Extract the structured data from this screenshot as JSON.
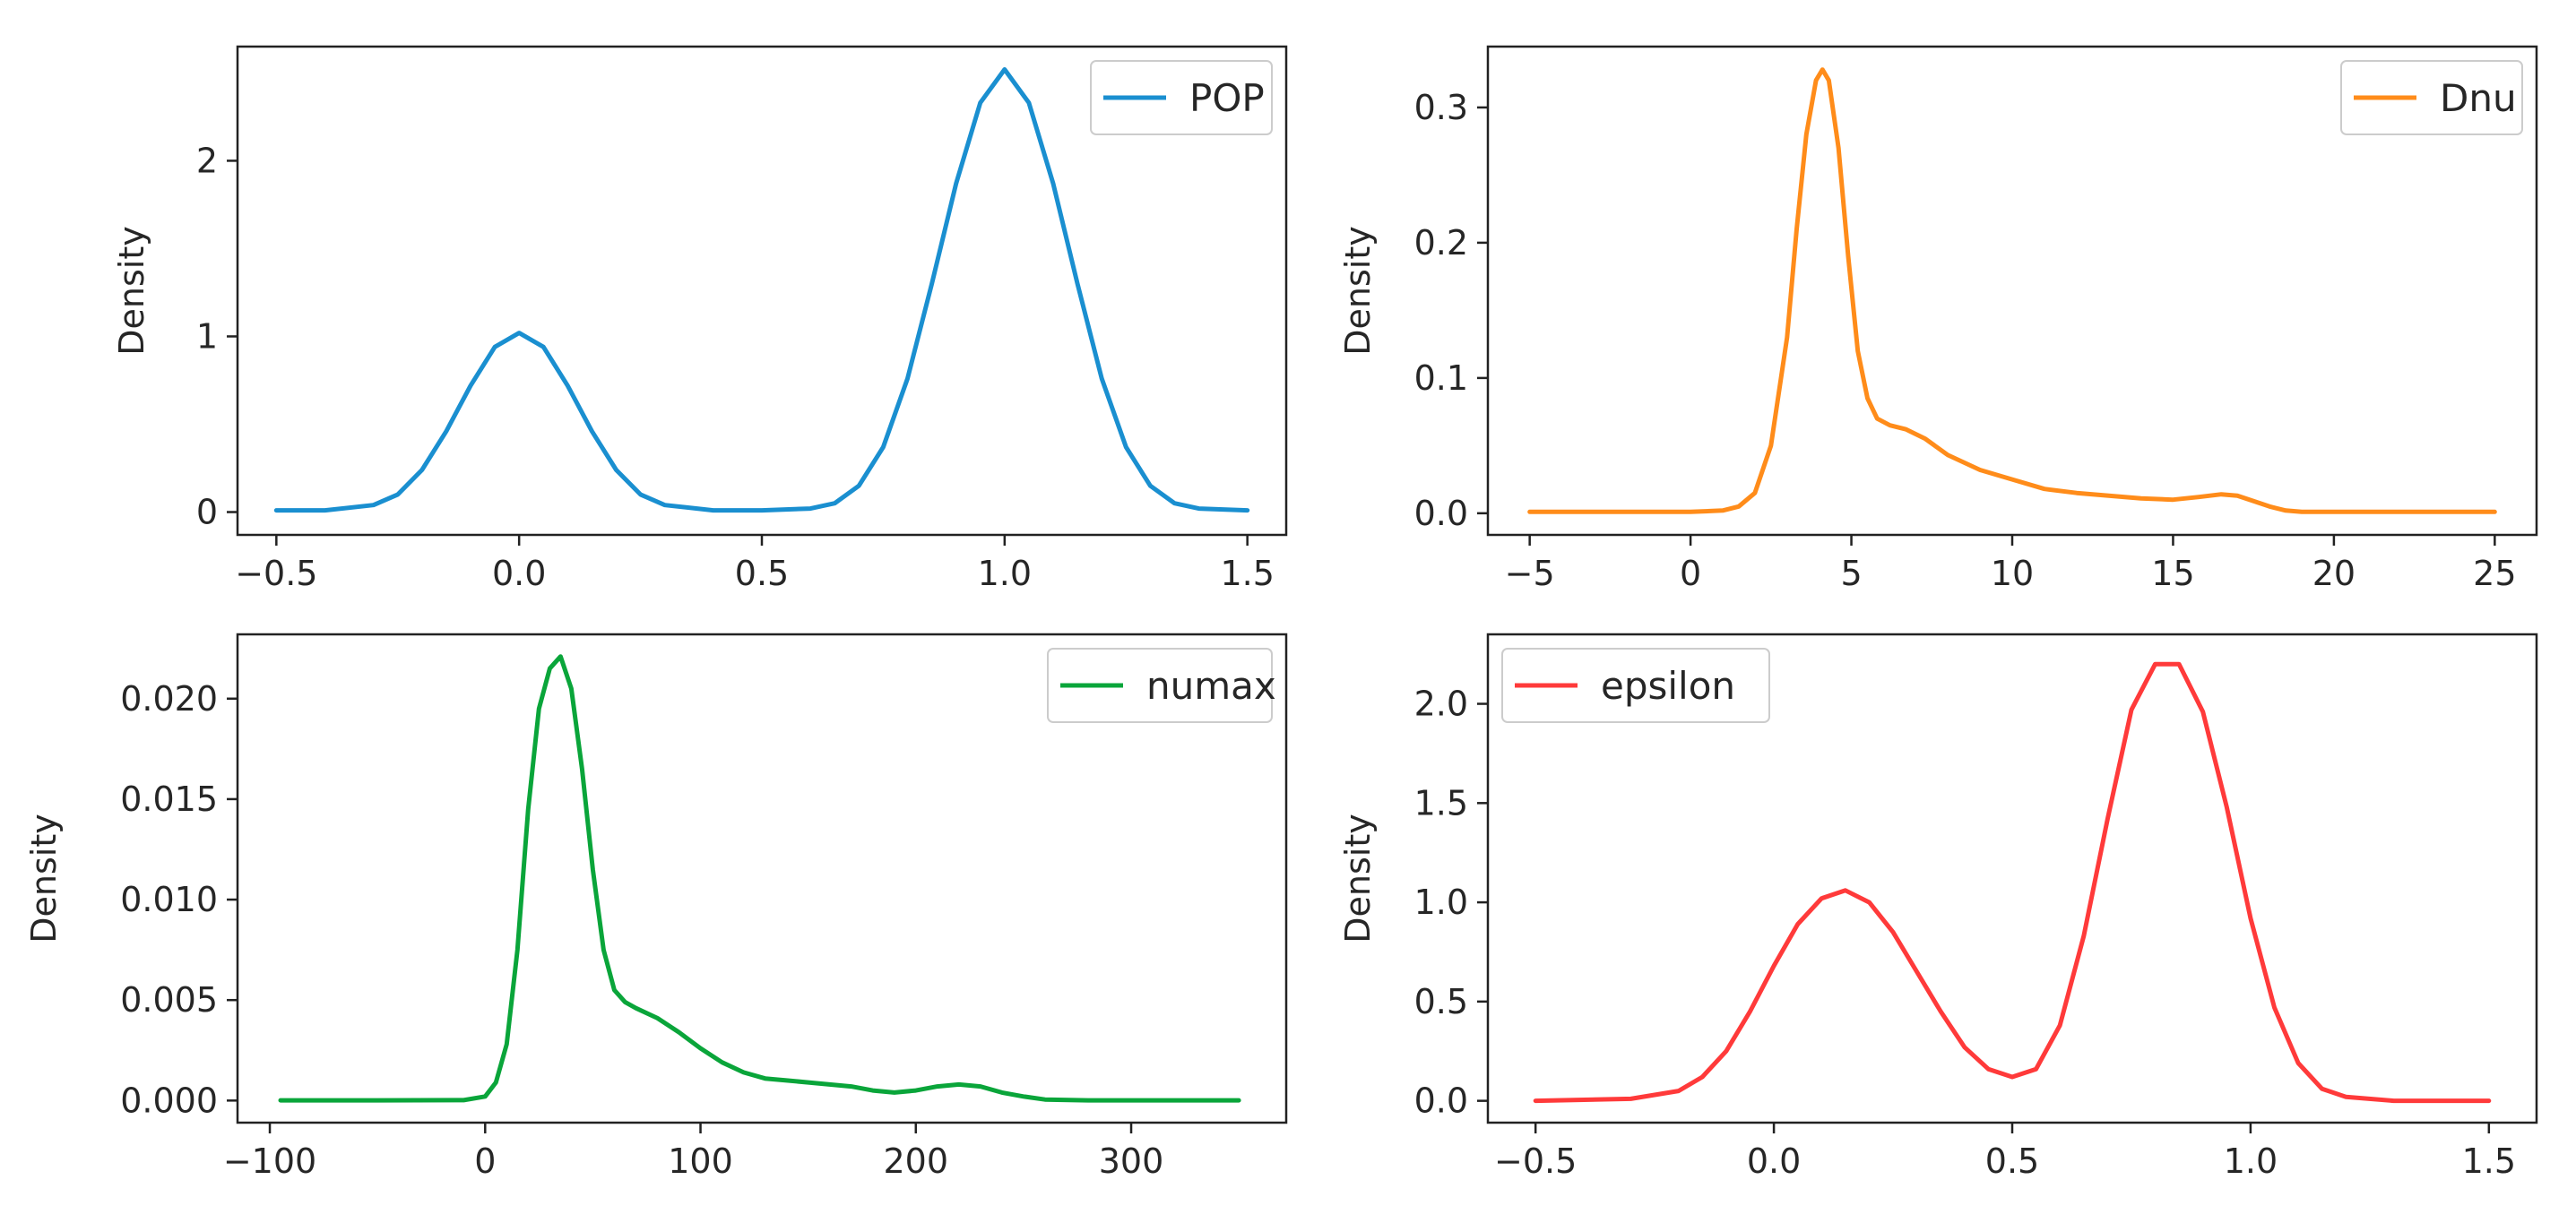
{
  "chart_data": [
    {
      "type": "line",
      "name": "POP",
      "ylabel": "Density",
      "xlabel": "",
      "color": "#1a8fd0",
      "xlim": [
        -0.58,
        1.58
      ],
      "ylim": [
        -0.13,
        2.65
      ],
      "xticks": [
        -0.5,
        0.0,
        0.5,
        1.0,
        1.5
      ],
      "xtick_labels": [
        "−0.5",
        "0.0",
        "0.5",
        "1.0",
        "1.5"
      ],
      "yticks": [
        0,
        1,
        2
      ],
      "ytick_labels": [
        "0",
        "1",
        "2"
      ],
      "legend": {
        "label": "POP",
        "loc": "upper right"
      },
      "series": [
        {
          "name": "POP",
          "x": [
            -0.5,
            -0.4,
            -0.3,
            -0.25,
            -0.2,
            -0.15,
            -0.1,
            -0.05,
            0.0,
            0.05,
            0.1,
            0.15,
            0.2,
            0.25,
            0.3,
            0.4,
            0.5,
            0.6,
            0.65,
            0.7,
            0.75,
            0.8,
            0.85,
            0.9,
            0.95,
            1.0,
            1.05,
            1.1,
            1.15,
            1.2,
            1.25,
            1.3,
            1.35,
            1.4,
            1.5
          ],
          "values": [
            0.01,
            0.01,
            0.04,
            0.1,
            0.24,
            0.46,
            0.72,
            0.94,
            1.02,
            0.94,
            0.72,
            0.46,
            0.24,
            0.1,
            0.04,
            0.01,
            0.01,
            0.02,
            0.05,
            0.15,
            0.37,
            0.76,
            1.3,
            1.87,
            2.33,
            2.52,
            2.33,
            1.87,
            1.3,
            0.76,
            0.37,
            0.15,
            0.05,
            0.02,
            0.01
          ]
        }
      ]
    },
    {
      "type": "line",
      "name": "Dnu",
      "ylabel": "Density",
      "xlabel": "",
      "color": "#ff8c1a",
      "xlim": [
        -6.3,
        26.3
      ],
      "ylim": [
        -0.016,
        0.345
      ],
      "xticks": [
        -5,
        0,
        5,
        10,
        15,
        20,
        25
      ],
      "xtick_labels": [
        "−5",
        "0",
        "5",
        "10",
        "15",
        "20",
        "25"
      ],
      "yticks": [
        0.0,
        0.1,
        0.2,
        0.3
      ],
      "ytick_labels": [
        "0.0",
        "0.1",
        "0.2",
        "0.3"
      ],
      "legend": {
        "label": "Dnu",
        "loc": "upper right"
      },
      "series": [
        {
          "name": "Dnu",
          "x": [
            -5,
            -2,
            0,
            1,
            1.5,
            2,
            2.5,
            3,
            3.3,
            3.6,
            3.9,
            4.1,
            4.3,
            4.6,
            4.9,
            5.2,
            5.5,
            5.8,
            6.2,
            6.7,
            7.3,
            8,
            9,
            10,
            11,
            12,
            13,
            14,
            15,
            15.8,
            16.5,
            17,
            17.5,
            18,
            18.5,
            19,
            20,
            22,
            25
          ],
          "values": [
            0.001,
            0.001,
            0.001,
            0.002,
            0.005,
            0.015,
            0.05,
            0.13,
            0.21,
            0.28,
            0.32,
            0.328,
            0.32,
            0.27,
            0.19,
            0.12,
            0.085,
            0.07,
            0.065,
            0.062,
            0.055,
            0.043,
            0.032,
            0.025,
            0.018,
            0.015,
            0.013,
            0.011,
            0.01,
            0.012,
            0.014,
            0.013,
            0.009,
            0.005,
            0.002,
            0.001,
            0.001,
            0.001,
            0.001
          ]
        }
      ]
    },
    {
      "type": "line",
      "name": "numax",
      "ylabel": "Density",
      "xlabel": "",
      "color": "#0aa53a",
      "xlim": [
        -115,
        372
      ],
      "ylim": [
        -0.0011,
        0.0232
      ],
      "xticks": [
        -100,
        0,
        100,
        200,
        300
      ],
      "xtick_labels": [
        "−100",
        "0",
        "100",
        "200",
        "300"
      ],
      "yticks": [
        0.0,
        0.005,
        0.01,
        0.015,
        0.02
      ],
      "ytick_labels": [
        "0.000",
        "0.005",
        "0.010",
        "0.015",
        "0.020"
      ],
      "legend": {
        "label": "numax",
        "loc": "upper right"
      },
      "series": [
        {
          "name": "numax",
          "x": [
            -95,
            -50,
            -10,
            0,
            5,
            10,
            15,
            20,
            25,
            30,
            35,
            40,
            45,
            50,
            55,
            60,
            65,
            70,
            80,
            90,
            100,
            110,
            120,
            130,
            140,
            150,
            160,
            170,
            180,
            190,
            200,
            210,
            220,
            230,
            240,
            250,
            260,
            280,
            300,
            350
          ],
          "values": [
            1e-05,
            1e-05,
            2e-05,
            0.0002,
            0.0009,
            0.0028,
            0.0075,
            0.0145,
            0.0195,
            0.0215,
            0.0221,
            0.0205,
            0.0165,
            0.0115,
            0.0075,
            0.0055,
            0.0049,
            0.0046,
            0.0041,
            0.0034,
            0.0026,
            0.0019,
            0.0014,
            0.0011,
            0.001,
            0.0009,
            0.0008,
            0.0007,
            0.0005,
            0.0004,
            0.0005,
            0.0007,
            0.0008,
            0.0007,
            0.0004,
            0.0002,
            5e-05,
            1e-05,
            1e-05,
            1e-05
          ]
        }
      ]
    },
    {
      "type": "line",
      "name": "epsilon",
      "ylabel": "Density",
      "xlabel": "",
      "color": "#ff3a3a",
      "xlim": [
        -0.6,
        1.6
      ],
      "ylim": [
        -0.11,
        2.35
      ],
      "xticks": [
        -0.5,
        0.0,
        0.5,
        1.0,
        1.5
      ],
      "xtick_labels": [
        "−0.5",
        "0.0",
        "0.5",
        "1.0",
        "1.5"
      ],
      "yticks": [
        0.0,
        0.5,
        1.0,
        1.5,
        2.0
      ],
      "ytick_labels": [
        "0.0",
        "0.5",
        "1.0",
        "1.5",
        "2.0"
      ],
      "legend": {
        "label": "epsilon",
        "loc": "upper left"
      },
      "series": [
        {
          "name": "epsilon",
          "x": [
            -0.5,
            -0.3,
            -0.2,
            -0.15,
            -0.1,
            -0.05,
            0.0,
            0.05,
            0.1,
            0.15,
            0.2,
            0.25,
            0.3,
            0.35,
            0.4,
            0.45,
            0.5,
            0.55,
            0.6,
            0.65,
            0.7,
            0.75,
            0.8,
            0.85,
            0.9,
            0.95,
            1.0,
            1.05,
            1.1,
            1.15,
            1.2,
            1.3,
            1.5
          ],
          "values": [
            0.0,
            0.01,
            0.05,
            0.12,
            0.25,
            0.45,
            0.68,
            0.89,
            1.02,
            1.06,
            1.0,
            0.85,
            0.65,
            0.45,
            0.27,
            0.16,
            0.12,
            0.16,
            0.38,
            0.83,
            1.42,
            1.97,
            2.2,
            2.2,
            1.96,
            1.48,
            0.92,
            0.47,
            0.19,
            0.06,
            0.02,
            0.0,
            0.0
          ]
        }
      ]
    }
  ]
}
